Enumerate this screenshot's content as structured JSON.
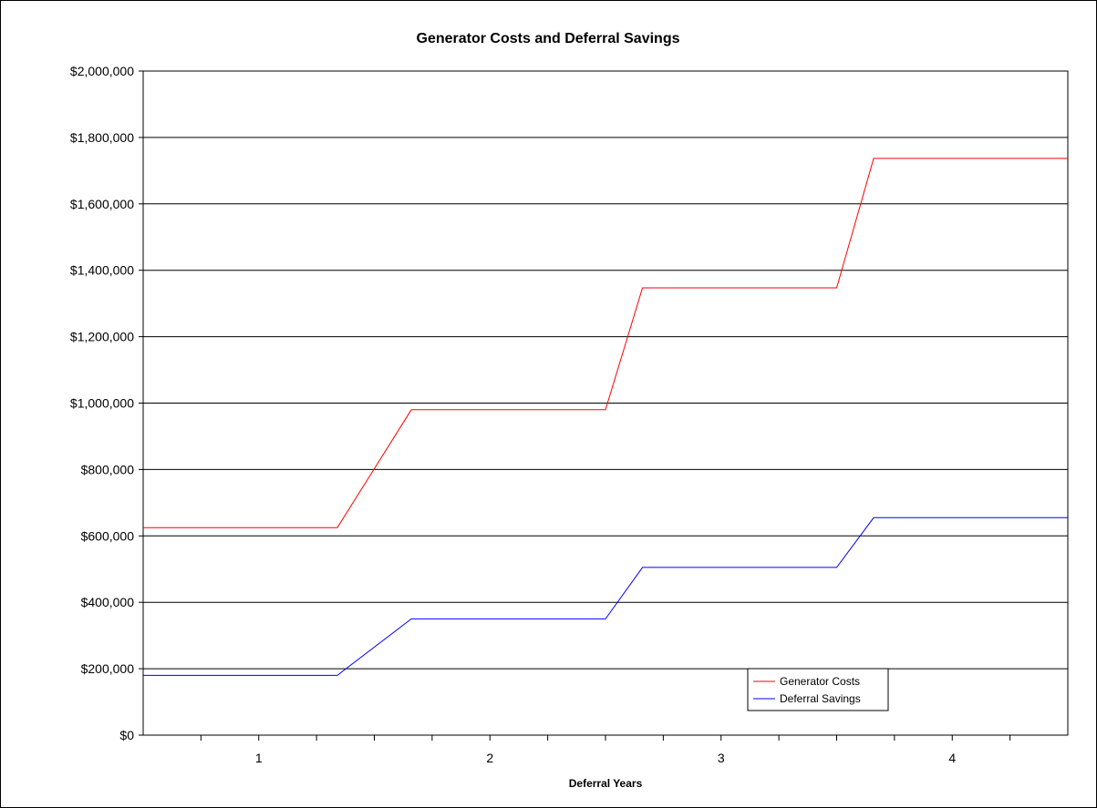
{
  "chart_data": {
    "type": "line",
    "title": "Generator Costs and Deferral Savings",
    "xlabel": "Deferral Years",
    "ylabel": "",
    "categories": [
      "1",
      "2",
      "3",
      "4"
    ],
    "x": [
      0.5,
      1.34,
      1.66,
      2.5,
      2.66,
      3.5,
      3.66,
      4.5
    ],
    "ylim": [
      0,
      2000000
    ],
    "yticks": [
      0,
      200000,
      400000,
      600000,
      800000,
      1000000,
      1200000,
      1400000,
      1600000,
      1800000,
      2000000
    ],
    "ytick_labels": [
      "$0",
      "$200,000",
      "$400,000",
      "$600,000",
      "$800,000",
      "$1,000,000",
      "$1,200,000",
      "$1,400,000",
      "$1,600,000",
      "$1,800,000",
      "$2,000,000"
    ],
    "grid": true,
    "legend_position": "bottom-right",
    "series": [
      {
        "name": "Generator Costs",
        "color": "#ff0000",
        "values": [
          625000,
          625000,
          980000,
          980000,
          1347000,
          1347000,
          1737000,
          1737000
        ]
      },
      {
        "name": "Deferral Savings",
        "color": "#0000ff",
        "values": [
          180000,
          180000,
          350000,
          350000,
          505000,
          505000,
          655000,
          655000
        ]
      }
    ]
  }
}
